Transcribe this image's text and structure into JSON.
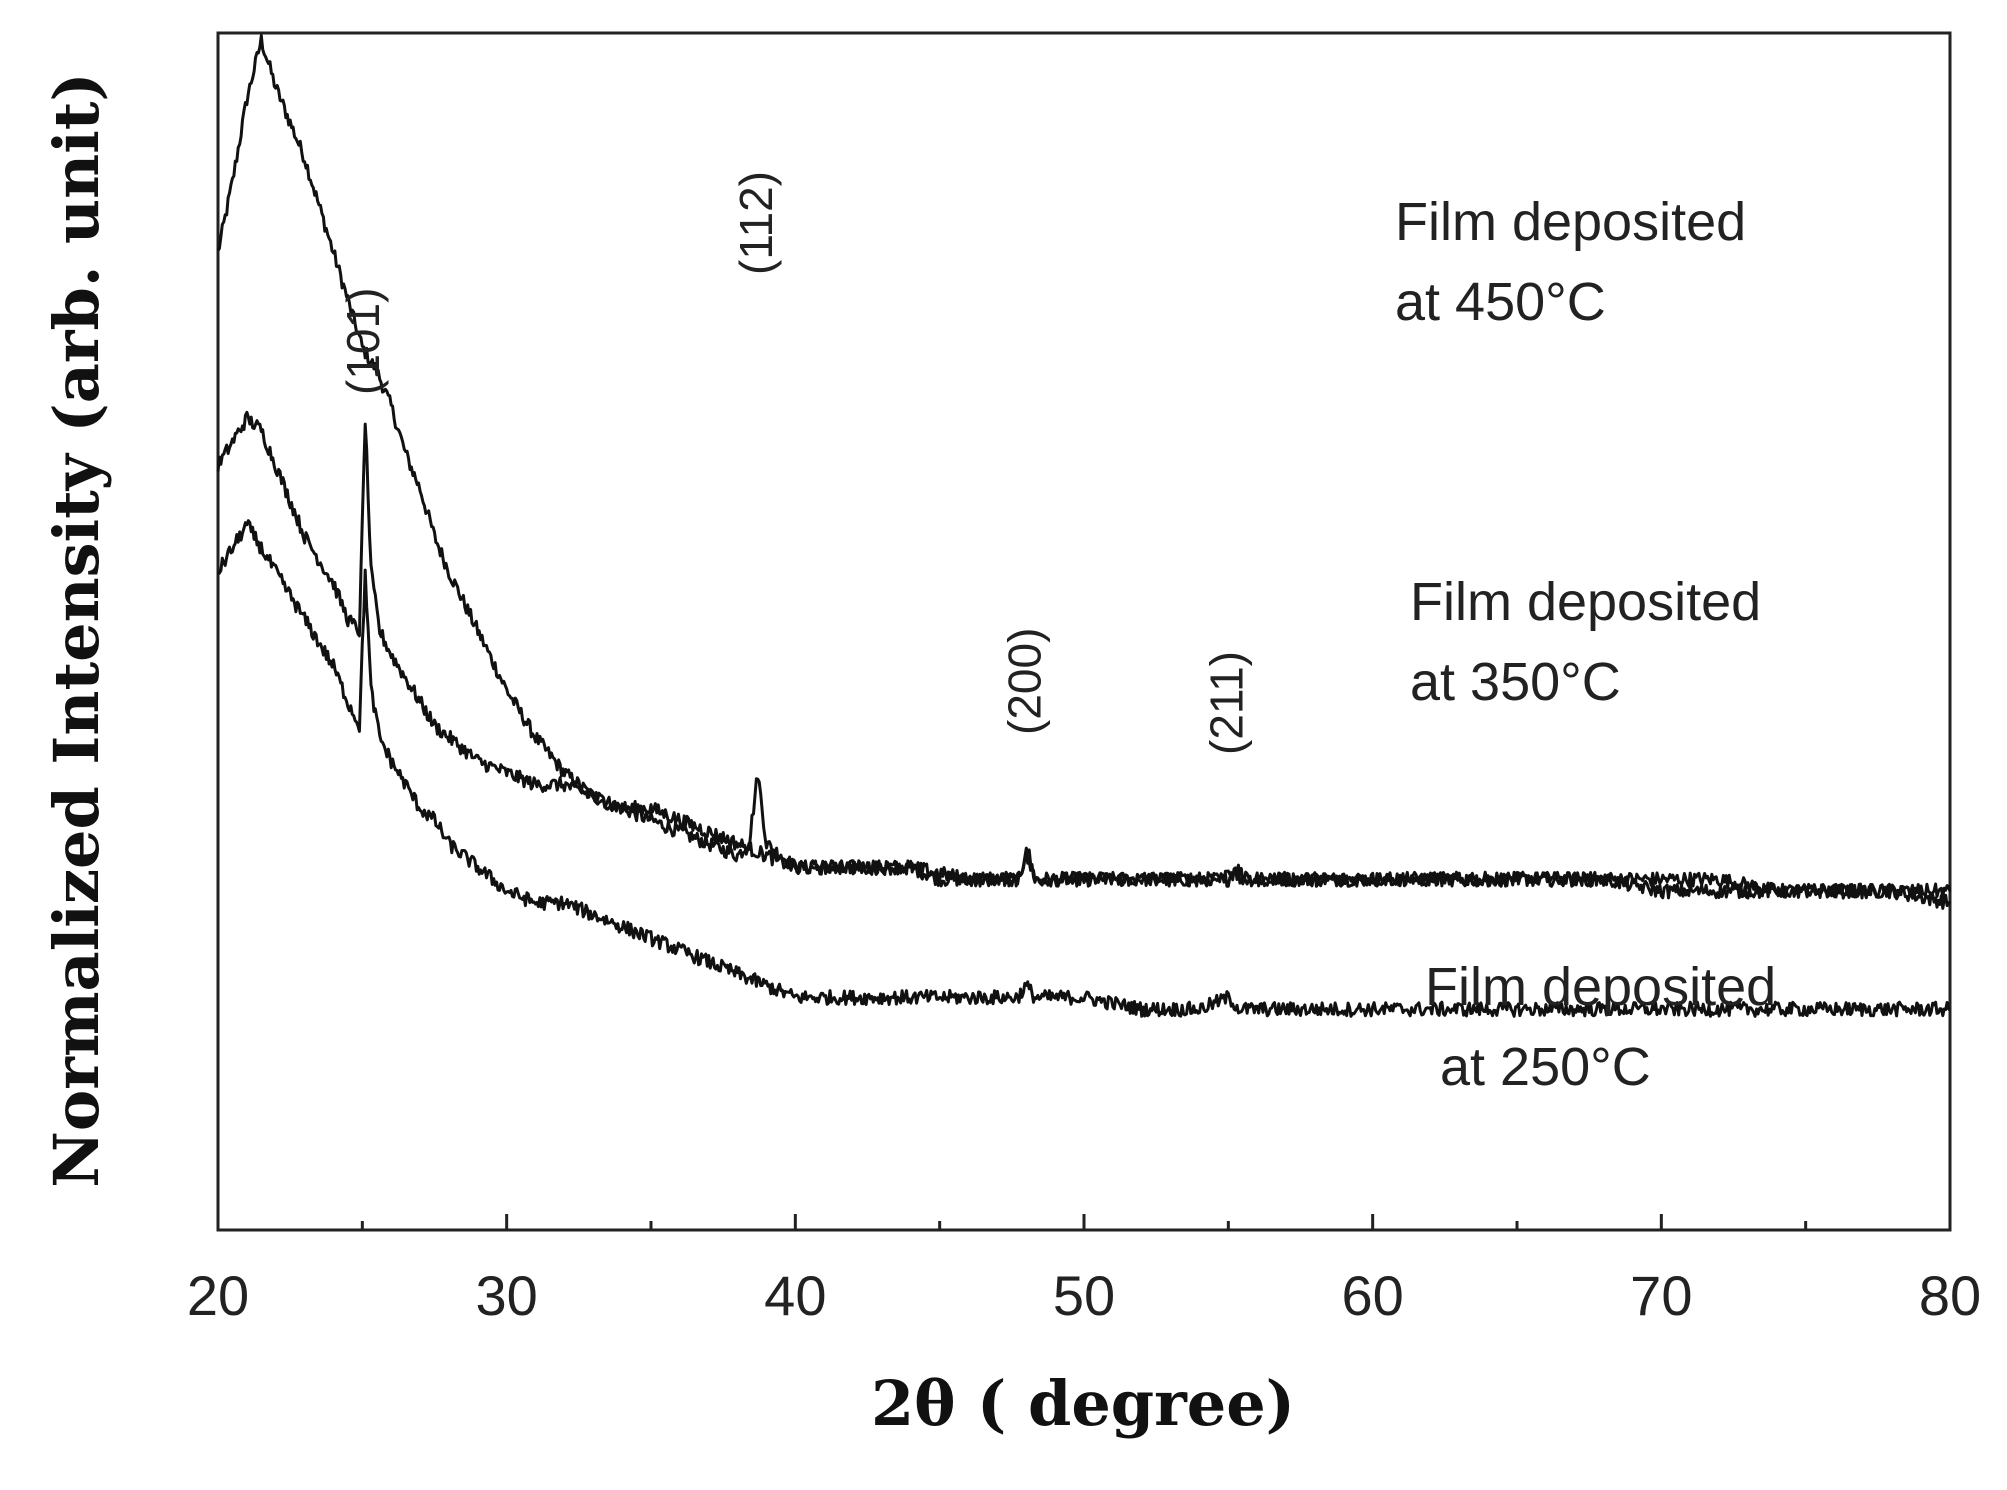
{
  "chart_data": {
    "type": "line",
    "xlabel": "2θ ( degree)",
    "ylabel": "Normalized Intensity (arb. unit)",
    "xlim": [
      20,
      80
    ],
    "xticks": [
      "20",
      "30",
      "40",
      "50",
      "60",
      "70",
      "80"
    ],
    "grid": false,
    "legend": "none",
    "line_color": "#111111",
    "series": [
      {
        "name": "Film deposited at 450°C",
        "label_lines": [
          "Film deposited",
          "at 450°C"
        ],
        "points": [
          [
            20,
            0.82
          ],
          [
            20.5,
            0.88
          ],
          [
            21,
            0.95
          ],
          [
            21.5,
            1.0
          ],
          [
            22,
            0.96
          ],
          [
            22.5,
            0.93
          ],
          [
            23,
            0.9
          ],
          [
            23.5,
            0.86
          ],
          [
            24,
            0.82
          ],
          [
            24.5,
            0.78
          ],
          [
            25,
            0.74
          ],
          [
            25.5,
            0.72
          ],
          [
            26,
            0.69
          ],
          [
            26.5,
            0.65
          ],
          [
            27,
            0.62
          ],
          [
            27.5,
            0.58
          ],
          [
            28,
            0.55
          ],
          [
            29,
            0.5
          ],
          [
            30,
            0.45
          ],
          [
            31,
            0.41
          ],
          [
            32,
            0.38
          ],
          [
            33,
            0.36
          ],
          [
            34,
            0.35
          ],
          [
            35,
            0.34
          ],
          [
            36,
            0.33
          ],
          [
            37,
            0.32
          ],
          [
            38,
            0.31
          ],
          [
            38.4,
            0.32
          ],
          [
            38.7,
            0.38
          ],
          [
            39,
            0.32
          ],
          [
            39.5,
            0.31
          ],
          [
            40,
            0.3
          ],
          [
            41,
            0.3
          ],
          [
            42,
            0.3
          ],
          [
            43,
            0.3
          ],
          [
            44,
            0.3
          ],
          [
            45,
            0.29
          ],
          [
            46,
            0.29
          ],
          [
            47,
            0.29
          ],
          [
            47.8,
            0.29
          ],
          [
            48,
            0.32
          ],
          [
            48.3,
            0.29
          ],
          [
            50,
            0.29
          ],
          [
            52,
            0.29
          ],
          [
            54,
            0.29
          ],
          [
            55,
            0.29
          ],
          [
            55.3,
            0.3
          ],
          [
            55.6,
            0.29
          ],
          [
            58,
            0.29
          ],
          [
            60,
            0.29
          ],
          [
            62,
            0.29
          ],
          [
            64,
            0.29
          ],
          [
            66,
            0.29
          ],
          [
            68,
            0.29
          ],
          [
            70,
            0.29
          ],
          [
            72,
            0.29
          ],
          [
            74,
            0.28
          ],
          [
            76,
            0.28
          ],
          [
            78,
            0.28
          ],
          [
            80,
            0.27
          ]
        ],
        "annotations": [
          {
            "text": "(112)",
            "x": 38.7
          }
        ]
      },
      {
        "name": "Film deposited at 350°C",
        "label_lines": [
          "Film deposited",
          "at 350°C"
        ],
        "points": [
          [
            20,
            0.64
          ],
          [
            20.5,
            0.66
          ],
          [
            21,
            0.68
          ],
          [
            21.5,
            0.67
          ],
          [
            22,
            0.64
          ],
          [
            22.5,
            0.61
          ],
          [
            23,
            0.58
          ],
          [
            23.5,
            0.56
          ],
          [
            24,
            0.54
          ],
          [
            24.5,
            0.51
          ],
          [
            24.9,
            0.5
          ],
          [
            25.1,
            0.68
          ],
          [
            25.3,
            0.55
          ],
          [
            25.6,
            0.5
          ],
          [
            26,
            0.48
          ],
          [
            26.5,
            0.46
          ],
          [
            27,
            0.44
          ],
          [
            27.5,
            0.42
          ],
          [
            28,
            0.41
          ],
          [
            29,
            0.39
          ],
          [
            30,
            0.38
          ],
          [
            31,
            0.37
          ],
          [
            32,
            0.37
          ],
          [
            33,
            0.36
          ],
          [
            34,
            0.35
          ],
          [
            35,
            0.35
          ],
          [
            36,
            0.34
          ],
          [
            37,
            0.33
          ],
          [
            38,
            0.32
          ],
          [
            39,
            0.31
          ],
          [
            40,
            0.3
          ],
          [
            41,
            0.3
          ],
          [
            42,
            0.3
          ],
          [
            44,
            0.3
          ],
          [
            46,
            0.29
          ],
          [
            47.7,
            0.29
          ],
          [
            48,
            0.31
          ],
          [
            48.3,
            0.29
          ],
          [
            50,
            0.29
          ],
          [
            52,
            0.29
          ],
          [
            54,
            0.29
          ],
          [
            54.8,
            0.29
          ],
          [
            55,
            0.3
          ],
          [
            55.4,
            0.29
          ],
          [
            58,
            0.29
          ],
          [
            60,
            0.29
          ],
          [
            62,
            0.29
          ],
          [
            64,
            0.29
          ],
          [
            66,
            0.29
          ],
          [
            68,
            0.29
          ],
          [
            70,
            0.28
          ],
          [
            72,
            0.28
          ],
          [
            74,
            0.28
          ],
          [
            76,
            0.28
          ],
          [
            78,
            0.28
          ],
          [
            80,
            0.28
          ]
        ],
        "annotations": [
          {
            "text": "(101)",
            "x": 25.1
          },
          {
            "text": "(200)",
            "x": 48.0
          },
          {
            "text": "(211)",
            "x": 55.0
          }
        ]
      },
      {
        "name": "Film deposited at 250°C",
        "label_lines": [
          "Film deposited",
          " at 250°C"
        ],
        "points": [
          [
            20,
            0.55
          ],
          [
            20.5,
            0.57
          ],
          [
            21,
            0.59
          ],
          [
            21.5,
            0.57
          ],
          [
            22,
            0.55
          ],
          [
            22.5,
            0.53
          ],
          [
            23,
            0.51
          ],
          [
            23.5,
            0.49
          ],
          [
            24,
            0.47
          ],
          [
            24.5,
            0.44
          ],
          [
            24.9,
            0.42
          ],
          [
            25.1,
            0.55
          ],
          [
            25.3,
            0.45
          ],
          [
            25.6,
            0.41
          ],
          [
            26,
            0.39
          ],
          [
            26.5,
            0.37
          ],
          [
            27,
            0.35
          ],
          [
            27.5,
            0.34
          ],
          [
            28,
            0.32
          ],
          [
            29,
            0.3
          ],
          [
            30,
            0.28
          ],
          [
            31,
            0.27
          ],
          [
            32,
            0.27
          ],
          [
            33,
            0.26
          ],
          [
            34,
            0.25
          ],
          [
            35,
            0.24
          ],
          [
            36,
            0.23
          ],
          [
            37,
            0.22
          ],
          [
            38,
            0.21
          ],
          [
            39,
            0.2
          ],
          [
            40,
            0.19
          ],
          [
            42,
            0.19
          ],
          [
            44,
            0.19
          ],
          [
            46,
            0.19
          ],
          [
            47.7,
            0.19
          ],
          [
            48,
            0.2
          ],
          [
            48.3,
            0.19
          ],
          [
            50,
            0.19
          ],
          [
            52,
            0.18
          ],
          [
            54,
            0.18
          ],
          [
            55,
            0.19
          ],
          [
            55.4,
            0.18
          ],
          [
            58,
            0.18
          ],
          [
            60,
            0.18
          ],
          [
            62,
            0.18
          ],
          [
            64,
            0.18
          ],
          [
            66,
            0.18
          ],
          [
            68,
            0.18
          ],
          [
            70,
            0.18
          ],
          [
            72,
            0.18
          ],
          [
            74,
            0.18
          ],
          [
            76,
            0.18
          ],
          [
            78,
            0.18
          ],
          [
            80,
            0.18
          ]
        ],
        "annotations": []
      }
    ]
  }
}
